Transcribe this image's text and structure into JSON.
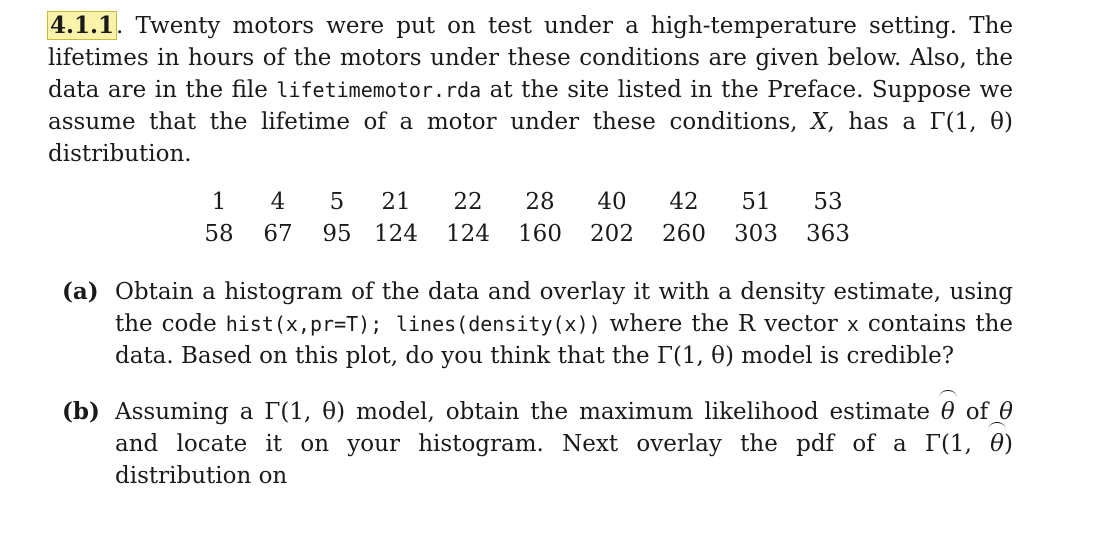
{
  "exercise": {
    "number": "4.1.1",
    "sep": ".",
    "intro_1": " Twenty motors were put on test under a high-temperature setting. The lifetimes in hours of the motors under these conditions are given below. Also, the data are in the file ",
    "file": "lifetimemotor.rda",
    "intro_2": " at the site listed in the Preface. Suppose we assume that the lifetime of a motor under these conditions, ",
    "var": "X",
    "intro_3": ", has a ",
    "dist": "Γ(1, θ)",
    "intro_4": " distribution."
  },
  "data_rows": [
    [
      "1",
      "4",
      "5",
      "21",
      "22",
      "28",
      "40",
      "42",
      "51",
      "53"
    ],
    [
      "58",
      "67",
      "95",
      "124",
      "124",
      "160",
      "202",
      "260",
      "303",
      "363"
    ]
  ],
  "part_a": {
    "label": "(a)",
    "t1": "Obtain a histogram of the data and overlay it with a density estimate, using the code ",
    "code": "hist(x,pr=T); lines(density(x))",
    "t2": " where the R vector ",
    "code_x": "x",
    "t3": " contains the data. Based on this plot, do you think that the ",
    "dist": "Γ(1, θ)",
    "t4": " model is credible?"
  },
  "part_b": {
    "label": "(b)",
    "t1": "Assuming a ",
    "dist": "Γ(1, θ)",
    "t2": " model, obtain the maximum likelihood estimate ",
    "theta_hat": "θ",
    "t3": " of ",
    "theta": "θ",
    "t4": " and locate it on your histogram. Next overlay the pdf of a ",
    "dist_open": "Γ(1, ",
    "theta_hat2": "θ",
    "dist_close": ")",
    "t5": " distribution on"
  }
}
